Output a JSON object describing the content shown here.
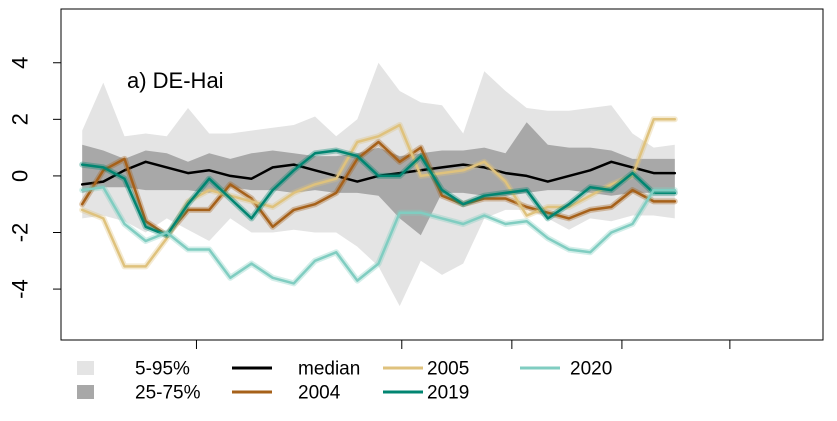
{
  "chart_data": {
    "type": "line",
    "panel_label": "a) DE-Hai",
    "xlabel": "",
    "ylabel": "",
    "ylim": [
      -5.8,
      5.9
    ],
    "yticks": [
      -4,
      -2,
      0,
      2,
      4
    ],
    "ytick_labels": [
      "-4",
      "-2",
      "0",
      "2",
      "4"
    ],
    "x": [
      1,
      2,
      3,
      4,
      5,
      6,
      7,
      8,
      9,
      10,
      11,
      12,
      13,
      14,
      15,
      16,
      17,
      18,
      19,
      20,
      21,
      22,
      23,
      24,
      25,
      26,
      27,
      28,
      29
    ],
    "xlim": [
      0,
      36
    ],
    "xticks": [
      6.4,
      16.1,
      21.3,
      26.5,
      31.6
    ],
    "grid": false,
    "bands": [
      {
        "name": "5-95%",
        "color": "#e4e4e4",
        "lower": [
          -1.5,
          -1.4,
          -1.6,
          -2.0,
          -1.5,
          -1.9,
          -2.3,
          -1.5,
          -2.0,
          -2.0,
          -1.9,
          -2.0,
          -2.0,
          -2.5,
          -3.2,
          -4.6,
          -3.0,
          -3.5,
          -3.1,
          -1.5,
          -1.2,
          -1.2,
          -1.5,
          -1.9,
          -1.5,
          -1.6,
          -1.4,
          -1.4,
          -1.5
        ],
        "upper": [
          1.6,
          3.3,
          1.4,
          1.5,
          1.4,
          2.4,
          1.5,
          1.5,
          1.6,
          1.7,
          1.8,
          2.1,
          1.4,
          2.0,
          4.0,
          3.0,
          2.6,
          2.5,
          1.5,
          3.7,
          3.0,
          2.4,
          2.3,
          2.3,
          2.4,
          2.5,
          1.5,
          1.0,
          1.1
        ]
      },
      {
        "name": "25-75%",
        "color": "#a8a8a8",
        "lower": [
          -0.6,
          -0.4,
          -0.4,
          -0.5,
          -0.5,
          -0.5,
          -0.6,
          -0.4,
          -0.5,
          -0.5,
          -0.6,
          -0.5,
          -0.6,
          -0.6,
          -0.7,
          -1.5,
          -2.1,
          -0.6,
          -0.6,
          -0.7,
          -0.7,
          -0.6,
          -0.5,
          -0.5,
          -0.6,
          -0.7,
          -0.6,
          -0.6,
          -0.6
        ],
        "upper": [
          1.1,
          0.9,
          0.6,
          0.9,
          0.8,
          0.5,
          0.8,
          0.6,
          0.8,
          0.9,
          0.8,
          0.7,
          0.7,
          0.8,
          1.0,
          0.7,
          0.8,
          0.9,
          0.9,
          1.0,
          0.8,
          1.9,
          1.1,
          1.0,
          1.0,
          0.9,
          0.6,
          0.6,
          0.6
        ]
      }
    ],
    "series": [
      {
        "name": "median",
        "color": "#000000",
        "values": [
          -0.3,
          -0.2,
          0.2,
          0.5,
          0.3,
          0.1,
          0.2,
          0.0,
          -0.1,
          0.3,
          0.4,
          0.2,
          0.0,
          -0.2,
          0.0,
          0.1,
          0.2,
          0.3,
          0.4,
          0.3,
          0.1,
          0.0,
          -0.2,
          0.0,
          0.2,
          0.5,
          0.3,
          0.1,
          0.1
        ]
      },
      {
        "name": "2004",
        "color": "#a6611a",
        "values": [
          -1.0,
          0.2,
          0.6,
          -1.6,
          -2.1,
          -1.2,
          -1.2,
          -0.3,
          -0.8,
          -1.8,
          -1.2,
          -1.0,
          -0.6,
          0.6,
          1.2,
          0.5,
          1.0,
          -0.7,
          -1.0,
          -0.8,
          -0.8,
          -1.1,
          -1.3,
          -1.5,
          -1.2,
          -1.1,
          -0.5,
          -0.9,
          -0.9
        ]
      },
      {
        "name": "2005",
        "color": "#dfc27d",
        "values": [
          -1.2,
          -1.5,
          -3.2,
          -3.2,
          -2.2,
          -0.9,
          -0.5,
          -0.7,
          -0.9,
          -1.1,
          -0.6,
          -0.3,
          -0.1,
          1.2,
          1.4,
          1.8,
          0.0,
          0.1,
          0.2,
          0.5,
          -0.2,
          -1.4,
          -1.1,
          -1.1,
          -0.7,
          -0.3,
          0.0,
          2.0,
          2.0
        ]
      },
      {
        "name": "2019",
        "color": "#018571",
        "values": [
          0.4,
          0.3,
          -0.1,
          -1.8,
          -2.1,
          -1.0,
          -0.1,
          -0.8,
          -1.5,
          -0.5,
          0.2,
          0.8,
          0.9,
          0.7,
          0.0,
          0.0,
          0.7,
          -0.5,
          -1.0,
          -0.7,
          -0.6,
          -0.5,
          -1.5,
          -1.0,
          -0.4,
          -0.5,
          0.1,
          -0.6,
          -0.6
        ]
      },
      {
        "name": "2020",
        "color": "#80cdc1",
        "values": [
          -0.5,
          -0.4,
          -1.7,
          -2.3,
          -2.0,
          -2.6,
          -2.6,
          -3.6,
          -3.1,
          -3.6,
          -3.8,
          -3.0,
          -2.7,
          -3.7,
          -3.1,
          -1.3,
          -1.3,
          -1.5,
          -1.7,
          -1.4,
          -1.7,
          -1.6,
          -2.2,
          -2.6,
          -2.7,
          -2.0,
          -1.7,
          -0.5,
          -0.5
        ]
      }
    ],
    "legend": {
      "placement": "bottom",
      "items": [
        {
          "label": "5-95%",
          "kind": "box",
          "color": "#e4e4e4"
        },
        {
          "label": "25-75%",
          "kind": "box",
          "color": "#a8a8a8"
        },
        {
          "label": "median",
          "kind": "line",
          "color": "#000000"
        },
        {
          "label": "2004",
          "kind": "line",
          "color": "#a6611a"
        },
        {
          "label": "2005",
          "kind": "line",
          "color": "#dfc27d"
        },
        {
          "label": "2019",
          "kind": "line",
          "color": "#018571"
        },
        {
          "label": "2020",
          "kind": "line",
          "color": "#80cdc1"
        }
      ]
    }
  }
}
